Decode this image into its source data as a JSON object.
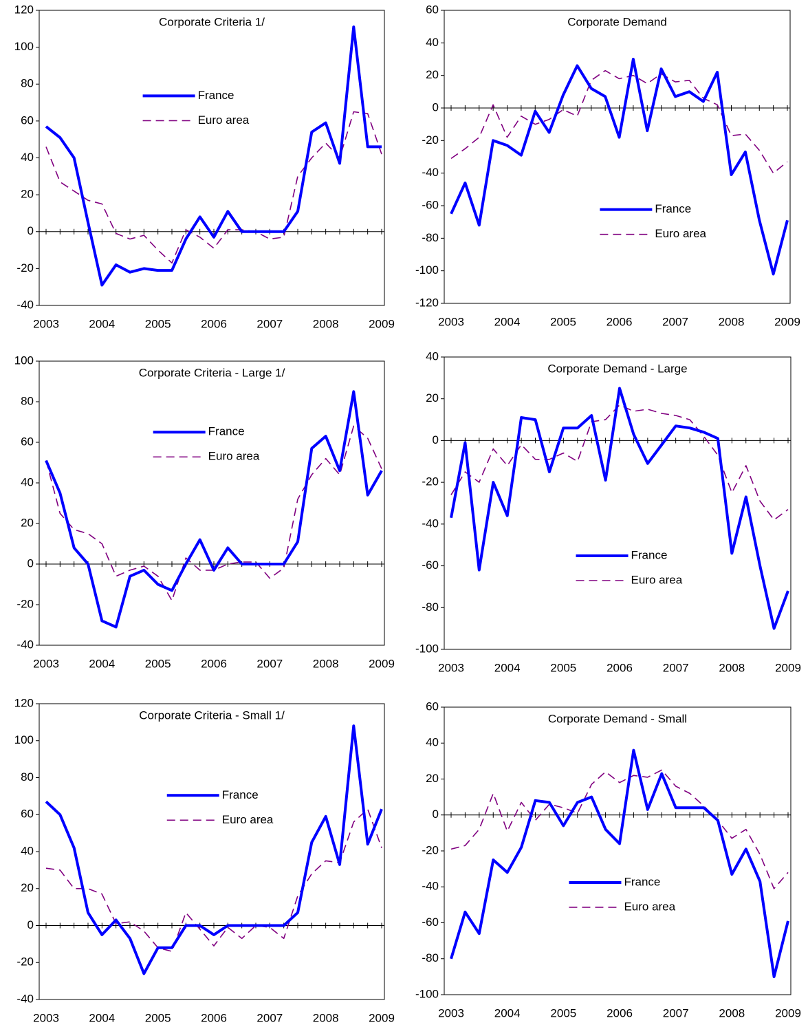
{
  "chart_data": [
    {
      "type": "line",
      "title": "Corporate Criteria 1/",
      "categories": [
        "2003",
        null,
        null,
        null,
        "2004",
        null,
        null,
        null,
        "2005",
        null,
        null,
        null,
        "2006",
        null,
        null,
        null,
        "2007",
        null,
        null,
        null,
        "2008",
        null,
        null,
        null,
        "2009"
      ],
      "series": [
        {
          "name": "France",
          "color": "#0000ff",
          "line_style": "solid",
          "values": [
            57,
            51,
            40,
            5,
            -29,
            -18,
            -22,
            -20,
            -21,
            -21,
            -4,
            8,
            -3,
            11,
            0,
            0,
            0,
            0,
            11,
            54,
            59,
            37,
            111,
            46,
            46
          ]
        },
        {
          "name": "Euro area",
          "color": "#800080",
          "line_style": "dashed",
          "values": [
            46,
            27,
            22,
            17,
            15,
            -1,
            -4,
            -2,
            -10,
            -17,
            1,
            -3,
            -9,
            1,
            1,
            0,
            -4,
            -3,
            30,
            40,
            48,
            40,
            65,
            64,
            42
          ]
        }
      ],
      "ylim": [
        -40,
        120
      ],
      "yticks": [
        -40,
        -20,
        0,
        20,
        40,
        60,
        80,
        100,
        120
      ]
    },
    {
      "type": "line",
      "title": "Corporate Demand",
      "categories": [
        "2003",
        null,
        null,
        null,
        "2004",
        null,
        null,
        null,
        "2005",
        null,
        null,
        null,
        "2006",
        null,
        null,
        null,
        "2007",
        null,
        null,
        null,
        "2008",
        null,
        null,
        null,
        "2009"
      ],
      "series": [
        {
          "name": "France",
          "color": "#0000ff",
          "line_style": "solid",
          "values": [
            -65,
            -46,
            -72,
            -20,
            -23,
            -29,
            -2,
            -15,
            8,
            26,
            12,
            7,
            -18,
            30,
            -14,
            24,
            7,
            10,
            4,
            22,
            -41,
            -27,
            -69,
            -102,
            -69
          ]
        },
        {
          "name": "Euro area",
          "color": "#800080",
          "line_style": "dashed",
          "values": [
            -31,
            -25,
            -18,
            2,
            -18,
            -5,
            -10,
            -7,
            -1,
            -5,
            17,
            23,
            18,
            20,
            15,
            21,
            16,
            17,
            6,
            2,
            -17,
            -16,
            -26,
            -40,
            -33
          ]
        }
      ],
      "ylim": [
        -120,
        60
      ],
      "yticks": [
        -120,
        -100,
        -80,
        -60,
        -40,
        -20,
        0,
        20,
        40,
        60
      ]
    },
    {
      "type": "line",
      "title": "Corporate Criteria - Large 1/",
      "categories": [
        "2003",
        null,
        null,
        null,
        "2004",
        null,
        null,
        null,
        "2005",
        null,
        null,
        null,
        "2006",
        null,
        null,
        null,
        "2007",
        null,
        null,
        null,
        "2008",
        null,
        null,
        null,
        "2009"
      ],
      "series": [
        {
          "name": "France",
          "color": "#0000ff",
          "line_style": "solid",
          "values": [
            51,
            35,
            8,
            0,
            -28,
            -31,
            -6,
            -3,
            -10,
            -13,
            0,
            12,
            -3,
            8,
            0,
            0,
            0,
            0,
            11,
            57,
            63,
            46,
            85,
            34,
            46
          ]
        },
        {
          "name": "Euro area",
          "color": "#800080",
          "line_style": "dashed",
          "values": [
            51,
            25,
            17,
            15,
            10,
            -6,
            -3,
            -1,
            -6,
            -18,
            3,
            -3,
            -3,
            0,
            1,
            1,
            -7,
            -2,
            32,
            44,
            52,
            44,
            68,
            62,
            47
          ]
        }
      ],
      "ylim": [
        -40,
        100
      ],
      "yticks": [
        -40,
        -20,
        0,
        20,
        40,
        60,
        80,
        100
      ]
    },
    {
      "type": "line",
      "title": "Corporate Demand - Large",
      "categories": [
        "2003",
        null,
        null,
        null,
        "2004",
        null,
        null,
        null,
        "2005",
        null,
        null,
        null,
        "2006",
        null,
        null,
        null,
        "2007",
        null,
        null,
        null,
        "2008",
        null,
        null,
        null,
        "2009"
      ],
      "series": [
        {
          "name": "France",
          "color": "#0000ff",
          "line_style": "solid",
          "values": [
            -37,
            -1,
            -62,
            -20,
            -36,
            11,
            10,
            -15,
            6,
            6,
            12,
            -19,
            25,
            3,
            -11,
            -2,
            7,
            6,
            4,
            1,
            -54,
            -27,
            -60,
            -90,
            -72
          ]
        },
        {
          "name": "Euro area",
          "color": "#800080",
          "line_style": "dashed",
          "values": [
            -26,
            -15,
            -20,
            -4,
            -12,
            -2,
            -9,
            -9,
            -6,
            -10,
            9,
            10,
            17,
            14,
            15,
            13,
            12,
            10,
            2,
            -7,
            -25,
            -12,
            -29,
            -38,
            -33
          ]
        }
      ],
      "ylim": [
        -100,
        40
      ],
      "yticks": [
        -100,
        -80,
        -60,
        -40,
        -20,
        0,
        20,
        40
      ]
    },
    {
      "type": "line",
      "title": "Corporate Criteria - Small 1/",
      "categories": [
        "2003",
        null,
        null,
        null,
        "2004",
        null,
        null,
        null,
        "2005",
        null,
        null,
        null,
        "2006",
        null,
        null,
        null,
        "2007",
        null,
        null,
        null,
        "2008",
        null,
        null,
        null,
        "2009"
      ],
      "series": [
        {
          "name": "France",
          "color": "#0000ff",
          "line_style": "solid",
          "values": [
            67,
            60,
            42,
            7,
            -5,
            3,
            -7,
            -26,
            -12,
            -12,
            0,
            0,
            -5,
            0,
            0,
            0,
            0,
            0,
            7,
            45,
            59,
            33,
            108,
            44,
            63
          ]
        },
        {
          "name": "Euro area",
          "color": "#800080",
          "line_style": "dashed",
          "values": [
            31,
            30,
            20,
            20,
            17,
            1,
            2,
            -3,
            -12,
            -14,
            7,
            -2,
            -11,
            -1,
            -7,
            0,
            -1,
            -7,
            16,
            28,
            35,
            34,
            56,
            63,
            42
          ]
        }
      ],
      "ylim": [
        -40,
        120
      ],
      "yticks": [
        -40,
        -20,
        0,
        20,
        40,
        60,
        80,
        100,
        120
      ]
    },
    {
      "type": "line",
      "title": "Corporate Demand - Small",
      "categories": [
        "2003",
        null,
        null,
        null,
        "2004",
        null,
        null,
        null,
        "2005",
        null,
        null,
        null,
        "2006",
        null,
        null,
        null,
        "2007",
        null,
        null,
        null,
        "2008",
        null,
        null,
        null,
        "2009"
      ],
      "series": [
        {
          "name": "France",
          "color": "#0000ff",
          "line_style": "solid",
          "values": [
            -80,
            -54,
            -66,
            -25,
            -32,
            -18,
            8,
            7,
            -6,
            7,
            10,
            -8,
            -16,
            36,
            3,
            23,
            4,
            4,
            4,
            -3,
            -33,
            -19,
            -37,
            -90,
            -59
          ]
        },
        {
          "name": "Euro area",
          "color": "#800080",
          "line_style": "dashed",
          "values": [
            -19,
            -17,
            -8,
            12,
            -9,
            7,
            -3,
            6,
            4,
            1,
            17,
            24,
            18,
            22,
            21,
            25,
            16,
            12,
            5,
            -3,
            -13,
            -8,
            -22,
            -41,
            -32
          ]
        }
      ],
      "ylim": [
        -100,
        60
      ],
      "yticks": [
        -100,
        -80,
        -60,
        -40,
        -20,
        0,
        20,
        40,
        60
      ]
    }
  ]
}
